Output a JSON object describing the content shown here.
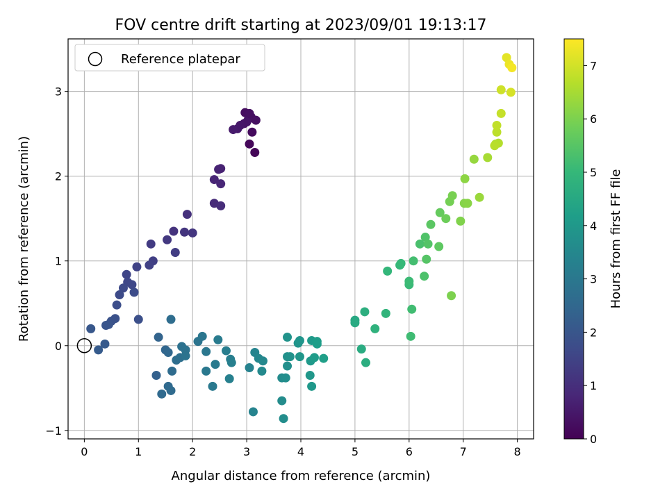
{
  "chart_data": {
    "type": "scatter",
    "title": "FOV centre drift starting at 2023/09/01 19:13:17",
    "xlabel": "Angular distance from reference (arcmin)",
    "ylabel": "Rotation from reference (arcmin)",
    "xlim": [
      -0.3,
      8.3
    ],
    "ylim": [
      -1.1,
      3.62
    ],
    "xticks": [
      0,
      1,
      2,
      3,
      4,
      5,
      6,
      7,
      8
    ],
    "yticks": [
      -1,
      0,
      1,
      2,
      3
    ],
    "grid": true,
    "legend": {
      "placement": "top-left",
      "entries": [
        "Reference platepar"
      ]
    },
    "reference_point": {
      "x": 0,
      "y": 0
    },
    "colorbar": {
      "label": "Hours from first FF file",
      "min": 0,
      "max": 7.5,
      "ticks": [
        0,
        1,
        2,
        3,
        4,
        5,
        6,
        7
      ],
      "colormap": "viridis"
    },
    "points": [
      {
        "x": 3.15,
        "y": 2.28,
        "c": 0.1
      },
      {
        "x": 3.05,
        "y": 2.38,
        "c": 0.15
      },
      {
        "x": 3.1,
        "y": 2.52,
        "c": 0.2
      },
      {
        "x": 2.97,
        "y": 2.75,
        "c": 0.25
      },
      {
        "x": 3.08,
        "y": 2.7,
        "c": 0.28
      },
      {
        "x": 3.17,
        "y": 2.66,
        "c": 0.32
      },
      {
        "x": 3.03,
        "y": 2.67,
        "c": 0.35
      },
      {
        "x": 2.95,
        "y": 2.62,
        "c": 0.38
      },
      {
        "x": 3.0,
        "y": 2.64,
        "c": 0.42
      },
      {
        "x": 2.88,
        "y": 2.6,
        "c": 0.46
      },
      {
        "x": 2.83,
        "y": 2.56,
        "c": 0.5
      },
      {
        "x": 2.75,
        "y": 2.55,
        "c": 0.55
      },
      {
        "x": 3.05,
        "y": 2.74,
        "c": 0.3
      },
      {
        "x": 2.52,
        "y": 2.09,
        "c": 0.7
      },
      {
        "x": 2.48,
        "y": 2.08,
        "c": 0.72
      },
      {
        "x": 2.4,
        "y": 1.96,
        "c": 0.78
      },
      {
        "x": 2.52,
        "y": 1.91,
        "c": 0.82
      },
      {
        "x": 2.4,
        "y": 1.68,
        "c": 0.9
      },
      {
        "x": 2.52,
        "y": 1.65,
        "c": 0.95
      },
      {
        "x": 1.9,
        "y": 1.55,
        "c": 1.05
      },
      {
        "x": 1.65,
        "y": 1.35,
        "c": 1.1
      },
      {
        "x": 1.85,
        "y": 1.34,
        "c": 1.15
      },
      {
        "x": 2.0,
        "y": 1.33,
        "c": 1.18
      },
      {
        "x": 1.53,
        "y": 1.25,
        "c": 1.22
      },
      {
        "x": 1.23,
        "y": 1.2,
        "c": 1.3
      },
      {
        "x": 1.68,
        "y": 1.1,
        "c": 1.35
      },
      {
        "x": 1.27,
        "y": 1.0,
        "c": 1.4
      },
      {
        "x": 1.2,
        "y": 0.95,
        "c": 1.45
      },
      {
        "x": 0.97,
        "y": 0.93,
        "c": 1.5
      },
      {
        "x": 0.78,
        "y": 0.84,
        "c": 1.55
      },
      {
        "x": 0.8,
        "y": 0.75,
        "c": 1.6
      },
      {
        "x": 0.88,
        "y": 0.72,
        "c": 1.62
      },
      {
        "x": 0.72,
        "y": 0.68,
        "c": 1.66
      },
      {
        "x": 0.65,
        "y": 0.6,
        "c": 1.7
      },
      {
        "x": 0.92,
        "y": 0.63,
        "c": 1.72
      },
      {
        "x": 0.6,
        "y": 0.48,
        "c": 1.78
      },
      {
        "x": 1.0,
        "y": 0.31,
        "c": 1.82
      },
      {
        "x": 0.57,
        "y": 0.32,
        "c": 1.86
      },
      {
        "x": 0.5,
        "y": 0.29,
        "c": 1.9
      },
      {
        "x": 0.45,
        "y": 0.25,
        "c": 1.94
      },
      {
        "x": 0.4,
        "y": 0.24,
        "c": 1.98
      },
      {
        "x": 0.12,
        "y": 0.2,
        "c": 2.02
      },
      {
        "x": 0.38,
        "y": 0.02,
        "c": 2.1
      },
      {
        "x": 0.26,
        "y": -0.05,
        "c": 2.15
      },
      {
        "x": 1.33,
        "y": -0.35,
        "c": 2.3
      },
      {
        "x": 1.37,
        "y": 0.1,
        "c": 2.4
      },
      {
        "x": 1.5,
        "y": -0.05,
        "c": 2.45
      },
      {
        "x": 1.55,
        "y": -0.08,
        "c": 2.5
      },
      {
        "x": 1.43,
        "y": -0.57,
        "c": 2.55
      },
      {
        "x": 1.55,
        "y": -0.48,
        "c": 2.58
      },
      {
        "x": 1.6,
        "y": -0.53,
        "c": 2.6
      },
      {
        "x": 1.62,
        "y": -0.3,
        "c": 2.63
      },
      {
        "x": 1.6,
        "y": 0.31,
        "c": 2.65
      },
      {
        "x": 1.7,
        "y": -0.17,
        "c": 2.7
      },
      {
        "x": 1.77,
        "y": -0.14,
        "c": 2.74
      },
      {
        "x": 1.8,
        "y": -0.01,
        "c": 2.78
      },
      {
        "x": 1.87,
        "y": -0.05,
        "c": 2.82
      },
      {
        "x": 1.87,
        "y": -0.12,
        "c": 2.86
      },
      {
        "x": 2.1,
        "y": 0.05,
        "c": 2.9
      },
      {
        "x": 2.18,
        "y": 0.11,
        "c": 2.94
      },
      {
        "x": 2.25,
        "y": -0.07,
        "c": 2.98
      },
      {
        "x": 2.25,
        "y": -0.3,
        "c": 3.02
      },
      {
        "x": 2.37,
        "y": -0.48,
        "c": 3.05
      },
      {
        "x": 2.42,
        "y": -0.22,
        "c": 3.08
      },
      {
        "x": 2.47,
        "y": 0.07,
        "c": 3.12
      },
      {
        "x": 2.62,
        "y": -0.06,
        "c": 3.16
      },
      {
        "x": 2.7,
        "y": -0.16,
        "c": 3.2
      },
      {
        "x": 2.72,
        "y": -0.2,
        "c": 3.24
      },
      {
        "x": 2.68,
        "y": -0.39,
        "c": 3.28
      },
      {
        "x": 3.05,
        "y": -0.26,
        "c": 3.32
      },
      {
        "x": 3.12,
        "y": -0.78,
        "c": 3.36
      },
      {
        "x": 3.15,
        "y": -0.08,
        "c": 3.4
      },
      {
        "x": 3.22,
        "y": -0.15,
        "c": 3.45
      },
      {
        "x": 3.3,
        "y": -0.18,
        "c": 3.5
      },
      {
        "x": 3.28,
        "y": -0.3,
        "c": 3.55
      },
      {
        "x": 3.65,
        "y": -0.38,
        "c": 3.6
      },
      {
        "x": 3.65,
        "y": -0.65,
        "c": 3.63
      },
      {
        "x": 3.68,
        "y": -0.86,
        "c": 3.66
      },
      {
        "x": 3.72,
        "y": -0.38,
        "c": 3.7
      },
      {
        "x": 3.75,
        "y": -0.24,
        "c": 3.73
      },
      {
        "x": 3.75,
        "y": -0.13,
        "c": 3.76
      },
      {
        "x": 3.8,
        "y": -0.13,
        "c": 3.8
      },
      {
        "x": 3.75,
        "y": 0.1,
        "c": 3.84
      },
      {
        "x": 3.95,
        "y": 0.03,
        "c": 3.88
      },
      {
        "x": 3.98,
        "y": 0.06,
        "c": 3.9
      },
      {
        "x": 3.98,
        "y": -0.13,
        "c": 3.93
      },
      {
        "x": 4.17,
        "y": -0.35,
        "c": 3.96
      },
      {
        "x": 4.2,
        "y": -0.48,
        "c": 4.0
      },
      {
        "x": 4.18,
        "y": -0.18,
        "c": 4.03
      },
      {
        "x": 4.2,
        "y": 0.06,
        "c": 4.06
      },
      {
        "x": 4.25,
        "y": -0.14,
        "c": 4.1
      },
      {
        "x": 4.3,
        "y": 0.05,
        "c": 4.13
      },
      {
        "x": 4.3,
        "y": 0.02,
        "c": 4.16
      },
      {
        "x": 4.42,
        "y": -0.15,
        "c": 4.2
      },
      {
        "x": 5.0,
        "y": 0.3,
        "c": 4.5
      },
      {
        "x": 5.0,
        "y": 0.27,
        "c": 4.55
      },
      {
        "x": 5.12,
        "y": -0.04,
        "c": 4.6
      },
      {
        "x": 5.2,
        "y": -0.2,
        "c": 4.65
      },
      {
        "x": 5.18,
        "y": 0.4,
        "c": 4.7
      },
      {
        "x": 5.37,
        "y": 0.2,
        "c": 4.8
      },
      {
        "x": 5.57,
        "y": 0.38,
        "c": 4.88
      },
      {
        "x": 5.6,
        "y": 0.88,
        "c": 4.95
      },
      {
        "x": 5.83,
        "y": 0.95,
        "c": 5.0
      },
      {
        "x": 5.85,
        "y": 0.97,
        "c": 5.02
      },
      {
        "x": 6.0,
        "y": 0.72,
        "c": 5.06
      },
      {
        "x": 6.0,
        "y": 0.76,
        "c": 5.1
      },
      {
        "x": 6.03,
        "y": 0.11,
        "c": 5.14
      },
      {
        "x": 6.05,
        "y": 0.43,
        "c": 5.18
      },
      {
        "x": 6.08,
        "y": 1.0,
        "c": 5.22
      },
      {
        "x": 6.2,
        "y": 1.2,
        "c": 5.3
      },
      {
        "x": 6.28,
        "y": 0.82,
        "c": 5.35
      },
      {
        "x": 6.3,
        "y": 1.28,
        "c": 5.4
      },
      {
        "x": 6.35,
        "y": 1.2,
        "c": 5.45
      },
      {
        "x": 6.32,
        "y": 1.02,
        "c": 5.48
      },
      {
        "x": 6.4,
        "y": 1.43,
        "c": 5.55
      },
      {
        "x": 6.55,
        "y": 1.17,
        "c": 5.6
      },
      {
        "x": 6.57,
        "y": 1.57,
        "c": 5.7
      },
      {
        "x": 6.68,
        "y": 1.5,
        "c": 5.8
      },
      {
        "x": 6.75,
        "y": 1.7,
        "c": 5.9
      },
      {
        "x": 6.8,
        "y": 1.77,
        "c": 5.95
      },
      {
        "x": 6.78,
        "y": 0.59,
        "c": 6.0
      },
      {
        "x": 6.95,
        "y": 1.47,
        "c": 6.05
      },
      {
        "x": 7.02,
        "y": 1.68,
        "c": 6.1
      },
      {
        "x": 7.08,
        "y": 1.68,
        "c": 6.15
      },
      {
        "x": 7.03,
        "y": 1.97,
        "c": 6.2
      },
      {
        "x": 7.2,
        "y": 2.2,
        "c": 6.3
      },
      {
        "x": 7.3,
        "y": 1.75,
        "c": 6.35
      },
      {
        "x": 7.45,
        "y": 2.22,
        "c": 6.5
      },
      {
        "x": 7.6,
        "y": 2.38,
        "c": 6.6
      },
      {
        "x": 7.65,
        "y": 2.39,
        "c": 6.65
      },
      {
        "x": 7.58,
        "y": 2.36,
        "c": 6.7
      },
      {
        "x": 7.62,
        "y": 2.52,
        "c": 6.75
      },
      {
        "x": 7.62,
        "y": 2.6,
        "c": 6.8
      },
      {
        "x": 7.7,
        "y": 2.74,
        "c": 6.85
      },
      {
        "x": 7.7,
        "y": 3.02,
        "c": 6.95
      },
      {
        "x": 7.88,
        "y": 2.99,
        "c": 7.05
      },
      {
        "x": 7.8,
        "y": 3.4,
        "c": 7.2
      },
      {
        "x": 7.85,
        "y": 3.32,
        "c": 7.3
      },
      {
        "x": 7.9,
        "y": 3.28,
        "c": 7.4
      }
    ]
  }
}
